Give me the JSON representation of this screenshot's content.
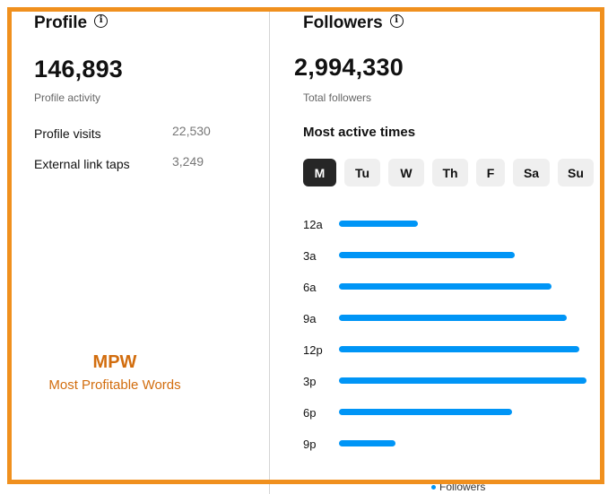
{
  "profile": {
    "title": "Profile",
    "total": "146,893",
    "total_label": "Profile activity",
    "stats": [
      {
        "label": "Profile visits",
        "value": "22,530"
      },
      {
        "label": "External link taps",
        "value": "3,249"
      }
    ]
  },
  "followers": {
    "title": "Followers",
    "total": "2,994,330",
    "total_label": "Total followers",
    "section_title": "Most active times",
    "days": [
      "M",
      "Tu",
      "W",
      "Th",
      "F",
      "Sa",
      "Su"
    ],
    "selected_day": "M",
    "legend_label": "Followers"
  },
  "chart_data": {
    "type": "bar",
    "orientation": "horizontal",
    "categories": [
      "12a",
      "3a",
      "6a",
      "9a",
      "12p",
      "3p",
      "6p",
      "9p"
    ],
    "series": [
      {
        "name": "Followers",
        "values": [
          0.32,
          0.71,
          0.86,
          0.92,
          0.97,
          1.0,
          0.7,
          0.23
        ]
      }
    ],
    "ylim": [
      0,
      1
    ],
    "accent": "#0095f6"
  },
  "watermark": {
    "title": "MPW",
    "subtitle": "Most Profitable Words"
  },
  "colors": {
    "frame": "#f0901e",
    "selected_pill": "#262626",
    "bar": "#0095f6"
  }
}
